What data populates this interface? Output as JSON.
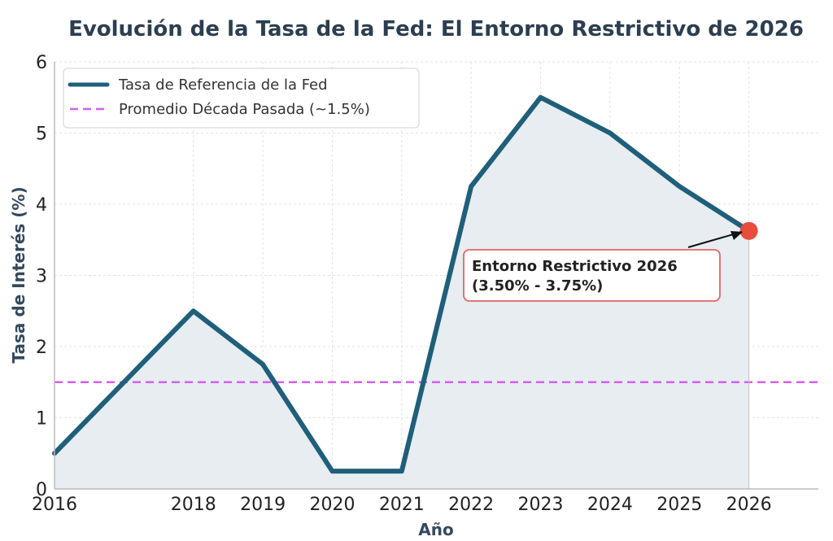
{
  "chart_data": {
    "type": "line",
    "title": "Evolución de la Tasa de la Fed: El Entorno Restrictivo de 2026",
    "xlabel": "Año",
    "ylabel": "Tasa de Interés (%)",
    "xlim": [
      2016,
      2027
    ],
    "ylim": [
      0,
      6
    ],
    "x_ticks": [
      "2016",
      "2018",
      "2019",
      "2020",
      "2021",
      "2022",
      "2023",
      "2024",
      "2025",
      "2026"
    ],
    "y_ticks": [
      "0",
      "1",
      "2",
      "3",
      "4",
      "5",
      "6"
    ],
    "grid": true,
    "legend_position": "top-left",
    "series": [
      {
        "name": "Tasa de Referencia de la Fed",
        "color": "#1f5f7a",
        "x": [
          2016,
          2018,
          2019,
          2020,
          2021,
          2022,
          2023,
          2024,
          2025,
          2026
        ],
        "y": [
          0.5,
          2.5,
          1.75,
          0.25,
          0.25,
          4.25,
          5.5,
          5.0,
          4.25,
          3.625
        ]
      }
    ],
    "reference_line": {
      "name": "Promedio Década Pasada (~1.5%)",
      "value": 1.5,
      "color": "#d65ef0"
    },
    "highlight_point": {
      "x": 2026,
      "y": 3.625,
      "color": "#e74c3c"
    },
    "annotation": {
      "line1": "Entorno Restrictivo 2026",
      "line2": "(3.50% - 3.75%)",
      "border_color": "#e06666"
    }
  }
}
